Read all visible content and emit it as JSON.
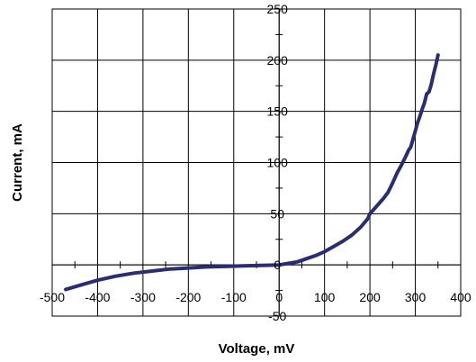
{
  "chart_data": {
    "type": "line",
    "title": "",
    "xlabel": "Voltage, mV",
    "ylabel": "Current, mA",
    "xlim": [
      -500,
      400
    ],
    "ylim": [
      -50,
      250
    ],
    "xticks": [
      -500,
      -400,
      -300,
      -200,
      -100,
      0,
      100,
      200,
      300,
      400
    ],
    "yticks": [
      -50,
      0,
      50,
      100,
      150,
      200,
      250
    ],
    "grid": true,
    "legend": "none",
    "series": [
      {
        "color": "#2b2d72",
        "x": [
          -470,
          -440,
          -400,
          -360,
          -320,
          -280,
          -240,
          -200,
          -160,
          -120,
          -80,
          -40,
          -20,
          0,
          20,
          40,
          60,
          80,
          100,
          120,
          140,
          160,
          180,
          195,
          200,
          210,
          220,
          230,
          240,
          250,
          260,
          270,
          280,
          285,
          290,
          295,
          300,
          305,
          310,
          315,
          320,
          325,
          330,
          335,
          340,
          345,
          350
        ],
        "y": [
          -24,
          -20,
          -15,
          -11,
          -8,
          -6,
          -4,
          -3,
          -2,
          -1.5,
          -1,
          -0.6,
          -0.3,
          0,
          1.5,
          3,
          6,
          9,
          13,
          18,
          23,
          29,
          37,
          45,
          50,
          55,
          60,
          65,
          71,
          80,
          90,
          98,
          107,
          112,
          115,
          123,
          131,
          139,
          145,
          152,
          158,
          167,
          169,
          176,
          186,
          195,
          205
        ]
      }
    ]
  }
}
